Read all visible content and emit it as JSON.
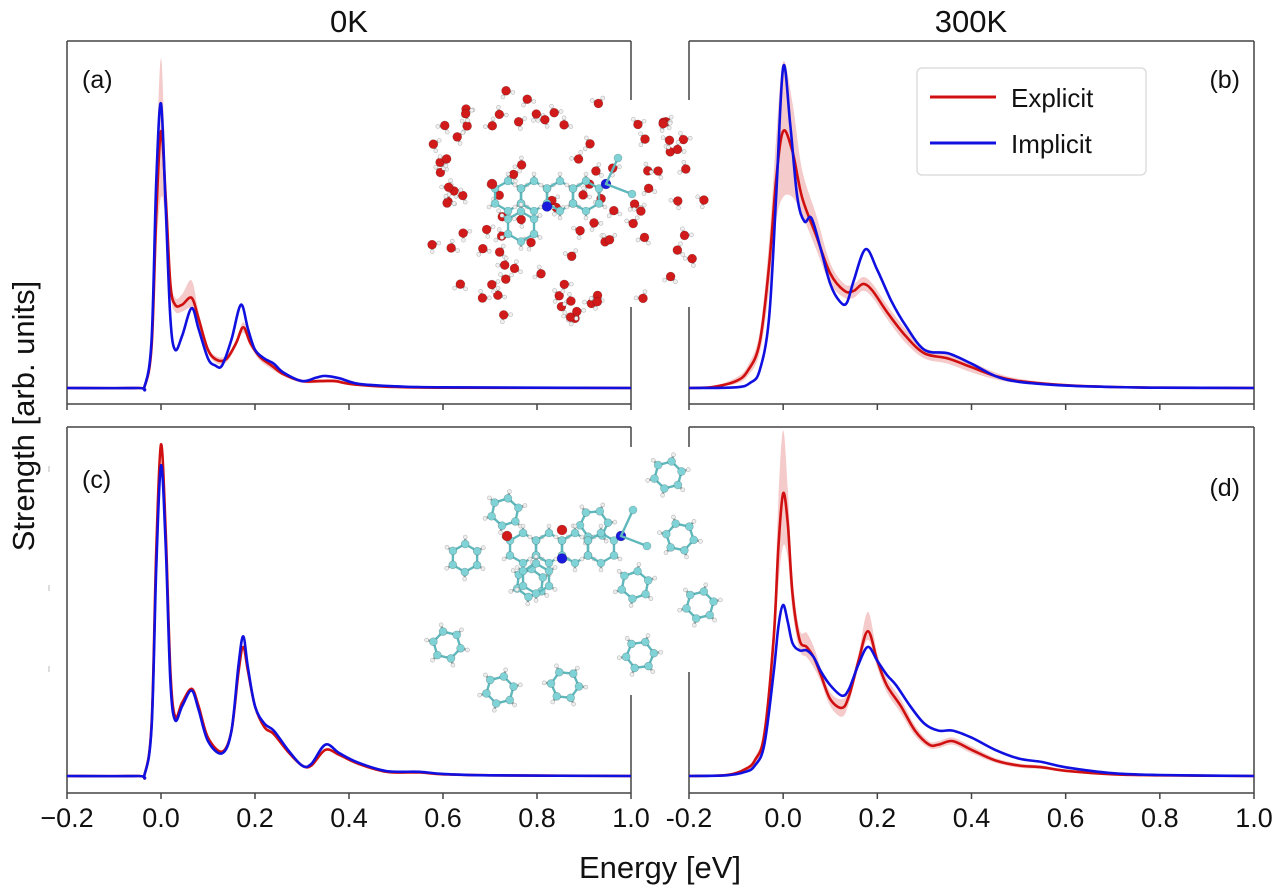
{
  "chart_data": {
    "type": "line",
    "layout": "2x2 grid",
    "column_titles": [
      "0K",
      "300K"
    ],
    "xlabel": "Energy [eV]",
    "ylabel": "Strength [arb. units]",
    "xlim": [
      -0.2,
      1.0
    ],
    "xticks": [
      -0.2,
      0.0,
      0.2,
      0.4,
      0.6,
      0.8,
      1.0
    ],
    "xtick_labels_left": [
      "−0.2",
      "0.0",
      "0.2",
      "0.4",
      "0.6",
      "0.8",
      "1.0"
    ],
    "xtick_labels_right": [
      "-0.2",
      "0.0",
      "0.2",
      "0.4",
      "0.6",
      "0.8",
      "1.0"
    ],
    "ylim": [
      -0.05,
      1.0
    ],
    "yticks_labeled": false,
    "grid": false,
    "legend": {
      "placement": "top-right of panel (b)",
      "entries": [
        {
          "name": "Explicit",
          "color": "#d01010"
        },
        {
          "name": "Implicit",
          "color": "#1010e0"
        }
      ]
    },
    "band_color": "#f0b8b8",
    "panels": [
      {
        "label": "(a)",
        "temperature": "0K",
        "inset": "chromophore in explicit water molecules",
        "series": [
          {
            "name": "Explicit",
            "x": [
              -0.2,
              -0.05,
              -0.035,
              -0.02,
              -0.01,
              0.0,
              0.01,
              0.02,
              0.03,
              0.045,
              0.065,
              0.08,
              0.1,
              0.12,
              0.14,
              0.16,
              0.175,
              0.19,
              0.21,
              0.235,
              0.26,
              0.3,
              0.34,
              0.37,
              0.4,
              0.45,
              0.5,
              0.6,
              1.0
            ],
            "y": [
              0,
              0,
              0.005,
              0.12,
              0.5,
              0.74,
              0.55,
              0.3,
              0.24,
              0.24,
              0.26,
              0.2,
              0.11,
              0.08,
              0.085,
              0.13,
              0.175,
              0.13,
              0.09,
              0.065,
              0.04,
              0.02,
              0.02,
              0.02,
              0.012,
              0.006,
              0.003,
              0.001,
              0
            ],
            "band_low": [
              0,
              0,
              0.004,
              0.1,
              0.4,
              0.55,
              0.48,
              0.27,
              0.22,
              0.22,
              0.23,
              0.18,
              0.1,
              0.07,
              0.075,
              0.12,
              0.16,
              0.12,
              0.08,
              0.055,
              0.035,
              0.015,
              0.015,
              0.015,
              0.009,
              0.004,
              0.002,
              0.001,
              0
            ],
            "band_high": [
              0,
              0,
              0.006,
              0.14,
              0.62,
              0.95,
              0.63,
              0.33,
              0.26,
              0.27,
              0.31,
              0.22,
              0.12,
              0.09,
              0.095,
              0.14,
              0.19,
              0.14,
              0.1,
              0.075,
              0.047,
              0.025,
              0.025,
              0.025,
              0.015,
              0.008,
              0.004,
              0.001,
              0
            ]
          },
          {
            "name": "Implicit",
            "x": [
              -0.2,
              -0.05,
              -0.035,
              -0.02,
              -0.01,
              0.0,
              0.01,
              0.02,
              0.03,
              0.045,
              0.065,
              0.08,
              0.1,
              0.115,
              0.13,
              0.15,
              0.17,
              0.185,
              0.2,
              0.22,
              0.24,
              0.26,
              0.3,
              0.33,
              0.35,
              0.38,
              0.42,
              0.5,
              0.6,
              1.0
            ],
            "y": [
              0,
              0,
              0.005,
              0.14,
              0.6,
              0.82,
              0.52,
              0.2,
              0.11,
              0.15,
              0.23,
              0.17,
              0.085,
              0.065,
              0.065,
              0.14,
              0.24,
              0.17,
              0.11,
              0.085,
              0.07,
              0.045,
              0.02,
              0.03,
              0.035,
              0.028,
              0.012,
              0.005,
              0.002,
              0
            ]
          }
        ]
      },
      {
        "label": "(b)",
        "temperature": "300K",
        "inset": "",
        "series": [
          {
            "name": "Explicit",
            "x": [
              -0.2,
              -0.15,
              -0.1,
              -0.075,
              -0.05,
              -0.03,
              -0.015,
              0.0,
              0.02,
              0.04,
              0.07,
              0.1,
              0.13,
              0.15,
              0.17,
              0.19,
              0.22,
              0.26,
              0.3,
              0.35,
              0.4,
              0.45,
              0.5,
              0.6,
              0.7,
              0.8,
              1.0
            ],
            "y": [
              0,
              0.003,
              0.02,
              0.05,
              0.13,
              0.35,
              0.6,
              0.74,
              0.68,
              0.55,
              0.44,
              0.33,
              0.28,
              0.28,
              0.3,
              0.28,
              0.22,
              0.15,
              0.1,
              0.085,
              0.06,
              0.035,
              0.02,
              0.008,
              0.003,
              0.001,
              0
            ],
            "band_low": [
              0,
              0.002,
              0.012,
              0.035,
              0.1,
              0.28,
              0.48,
              0.55,
              0.55,
              0.5,
              0.4,
              0.3,
              0.26,
              0.26,
              0.28,
              0.26,
              0.2,
              0.13,
              0.085,
              0.07,
              0.045,
              0.025,
              0.014,
              0.005,
              0.002,
              0.0005,
              0
            ],
            "band_high": [
              0,
              0.005,
              0.03,
              0.065,
              0.16,
              0.42,
              0.72,
              0.94,
              0.82,
              0.63,
              0.5,
              0.36,
              0.3,
              0.3,
              0.32,
              0.3,
              0.24,
              0.17,
              0.115,
              0.1,
              0.075,
              0.045,
              0.027,
              0.011,
              0.004,
              0.0015,
              0
            ]
          },
          {
            "name": "Implicit",
            "x": [
              -0.2,
              -0.1,
              -0.07,
              -0.05,
              -0.03,
              -0.015,
              0.0,
              0.015,
              0.03,
              0.045,
              0.06,
              0.08,
              0.1,
              0.12,
              0.135,
              0.15,
              0.175,
              0.2,
              0.23,
              0.26,
              0.3,
              0.35,
              0.4,
              0.45,
              0.5,
              0.6,
              0.7,
              0.8,
              1.0
            ],
            "y": [
              0,
              0.002,
              0.015,
              0.05,
              0.2,
              0.55,
              0.925,
              0.76,
              0.55,
              0.48,
              0.49,
              0.4,
              0.3,
              0.25,
              0.245,
              0.31,
              0.4,
              0.34,
              0.25,
              0.18,
              0.11,
              0.1,
              0.07,
              0.035,
              0.018,
              0.007,
              0.003,
              0.001,
              0
            ]
          }
        ]
      },
      {
        "label": "(c)",
        "temperature": "0K",
        "inset": "chromophore in explicit cyclohexane molecules",
        "series": [
          {
            "name": "Explicit",
            "x": [
              -0.2,
              -0.05,
              -0.035,
              -0.02,
              -0.01,
              0.0,
              0.01,
              0.02,
              0.03,
              0.045,
              0.065,
              0.08,
              0.1,
              0.13,
              0.15,
              0.165,
              0.175,
              0.185,
              0.2,
              0.22,
              0.24,
              0.27,
              0.3,
              0.32,
              0.35,
              0.38,
              0.42,
              0.48,
              0.55,
              0.6,
              0.7,
              1.0
            ],
            "y": [
              0,
              0,
              0.005,
              0.15,
              0.65,
              0.95,
              0.7,
              0.3,
              0.17,
              0.21,
              0.25,
              0.2,
              0.11,
              0.07,
              0.13,
              0.3,
              0.37,
              0.3,
              0.2,
              0.14,
              0.12,
              0.07,
              0.03,
              0.03,
              0.075,
              0.06,
              0.035,
              0.012,
              0.01,
              0.005,
              0.002,
              0
            ]
          },
          {
            "name": "Implicit",
            "x": [
              -0.2,
              -0.05,
              -0.035,
              -0.02,
              -0.01,
              0.0,
              0.01,
              0.02,
              0.03,
              0.045,
              0.065,
              0.08,
              0.1,
              0.13,
              0.15,
              0.165,
              0.175,
              0.185,
              0.2,
              0.22,
              0.24,
              0.27,
              0.3,
              0.32,
              0.35,
              0.38,
              0.42,
              0.48,
              0.55,
              0.6,
              0.7,
              1.0
            ],
            "y": [
              0,
              0,
              0.005,
              0.14,
              0.6,
              0.89,
              0.66,
              0.27,
              0.16,
              0.2,
              0.245,
              0.19,
              0.1,
              0.065,
              0.13,
              0.32,
              0.4,
              0.31,
              0.2,
              0.15,
              0.13,
              0.075,
              0.03,
              0.035,
              0.09,
              0.065,
              0.038,
              0.014,
              0.012,
              0.006,
              0.002,
              0
            ]
          }
        ]
      },
      {
        "label": "(d)",
        "temperature": "300K",
        "inset": "",
        "series": [
          {
            "name": "Explicit",
            "x": [
              -0.2,
              -0.12,
              -0.08,
              -0.06,
              -0.04,
              -0.02,
              -0.01,
              0.0,
              0.01,
              0.02,
              0.035,
              0.05,
              0.065,
              0.08,
              0.1,
              0.125,
              0.14,
              0.16,
              0.18,
              0.2,
              0.22,
              0.25,
              0.28,
              0.31,
              0.33,
              0.36,
              0.4,
              0.45,
              0.5,
              0.55,
              0.6,
              0.7,
              0.8,
              1.0
            ],
            "y": [
              0,
              0.003,
              0.02,
              0.045,
              0.12,
              0.4,
              0.66,
              0.81,
              0.72,
              0.52,
              0.39,
              0.37,
              0.34,
              0.29,
              0.22,
              0.195,
              0.23,
              0.33,
              0.415,
              0.33,
              0.26,
              0.2,
              0.13,
              0.09,
              0.09,
              0.1,
              0.075,
              0.045,
              0.03,
              0.025,
              0.015,
              0.005,
              0.002,
              0
            ],
            "band_low": [
              0,
              0.002,
              0.015,
              0.035,
              0.1,
              0.34,
              0.55,
              0.66,
              0.62,
              0.47,
              0.36,
              0.34,
              0.31,
              0.27,
              0.2,
              0.17,
              0.21,
              0.31,
              0.39,
              0.31,
              0.24,
              0.18,
              0.115,
              0.08,
              0.08,
              0.09,
              0.065,
              0.038,
              0.024,
              0.02,
              0.011,
              0.003,
              0.001,
              0
            ],
            "band_high": [
              0,
              0.004,
              0.025,
              0.055,
              0.14,
              0.46,
              0.8,
              0.99,
              0.82,
              0.57,
              0.42,
              0.41,
              0.37,
              0.31,
              0.24,
              0.22,
              0.25,
              0.35,
              0.47,
              0.35,
              0.28,
              0.22,
              0.145,
              0.1,
              0.1,
              0.11,
              0.085,
              0.052,
              0.036,
              0.03,
              0.019,
              0.007,
              0.003,
              0
            ]
          },
          {
            "name": "Implicit",
            "x": [
              -0.2,
              -0.12,
              -0.08,
              -0.06,
              -0.04,
              -0.02,
              -0.01,
              0.0,
              0.01,
              0.02,
              0.035,
              0.05,
              0.065,
              0.08,
              0.1,
              0.125,
              0.14,
              0.16,
              0.18,
              0.2,
              0.22,
              0.24,
              0.27,
              0.3,
              0.33,
              0.36,
              0.4,
              0.45,
              0.5,
              0.55,
              0.6,
              0.7,
              0.8,
              1.0
            ],
            "y": [
              0,
              0.002,
              0.012,
              0.03,
              0.09,
              0.3,
              0.43,
              0.49,
              0.44,
              0.38,
              0.36,
              0.36,
              0.34,
              0.3,
              0.26,
              0.23,
              0.25,
              0.32,
              0.37,
              0.33,
              0.29,
              0.26,
              0.2,
              0.15,
              0.13,
              0.13,
              0.11,
              0.075,
              0.05,
              0.04,
              0.025,
              0.008,
              0.003,
              0
            ]
          }
        ]
      }
    ]
  }
}
